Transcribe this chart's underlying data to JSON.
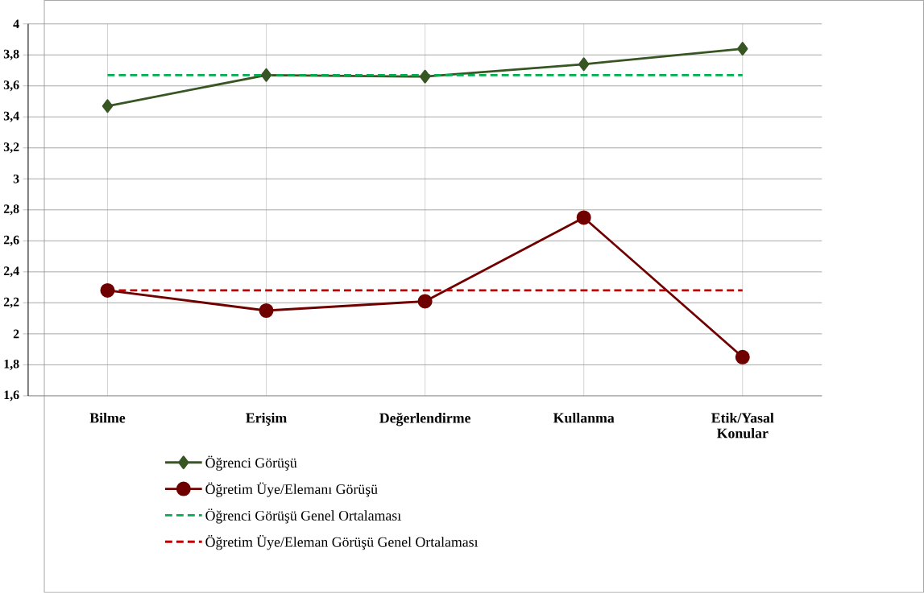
{
  "chart_data": {
    "type": "line",
    "categories": [
      "Bilme",
      "Erişim",
      "Değerlendirme",
      "Kullanma",
      "Etik/Yasal Konular"
    ],
    "series": [
      {
        "name": "Öğrenci Görüşü",
        "color": "#375623",
        "values": [
          3.47,
          3.67,
          3.66,
          3.74,
          3.84
        ],
        "marker": "diamond",
        "line_style": "solid"
      },
      {
        "name": "Öğretim Üye/Elemanı Görüşü",
        "color": "#700000",
        "values": [
          2.28,
          2.15,
          2.21,
          2.75,
          1.85
        ],
        "marker": "circle",
        "line_style": "solid"
      },
      {
        "name": "Öğrenci Görüşü Genel Ortalaması",
        "color": "#00b050",
        "values": [
          3.67,
          3.67,
          3.67,
          3.67,
          3.67
        ],
        "marker": "none",
        "line_style": "dashed"
      },
      {
        "name": "Öğretim Üye/Eleman Görüşü Genel Ortalaması",
        "color": "#c00000",
        "values": [
          2.28,
          2.28,
          2.28,
          2.28,
          2.28
        ],
        "marker": "none",
        "line_style": "dashed"
      }
    ],
    "ylim": [
      1.6,
      4
    ],
    "yticks": [
      {
        "value": 1.6,
        "label": "1,6"
      },
      {
        "value": 1.8,
        "label": "1,8"
      },
      {
        "value": 2,
        "label": "2"
      },
      {
        "value": 2.2,
        "label": "2,2"
      },
      {
        "value": 2.4,
        "label": "2,4"
      },
      {
        "value": 2.6,
        "label": "2,6"
      },
      {
        "value": 2.8,
        "label": "2,8"
      },
      {
        "value": 3,
        "label": "3"
      },
      {
        "value": 3.2,
        "label": "3,2"
      },
      {
        "value": 3.4,
        "label": "3,4"
      },
      {
        "value": 3.6,
        "label": "3,6"
      },
      {
        "value": 3.8,
        "label": "3,8"
      },
      {
        "value": 4,
        "label": "4"
      }
    ],
    "grid": true,
    "legend": "bottom"
  }
}
